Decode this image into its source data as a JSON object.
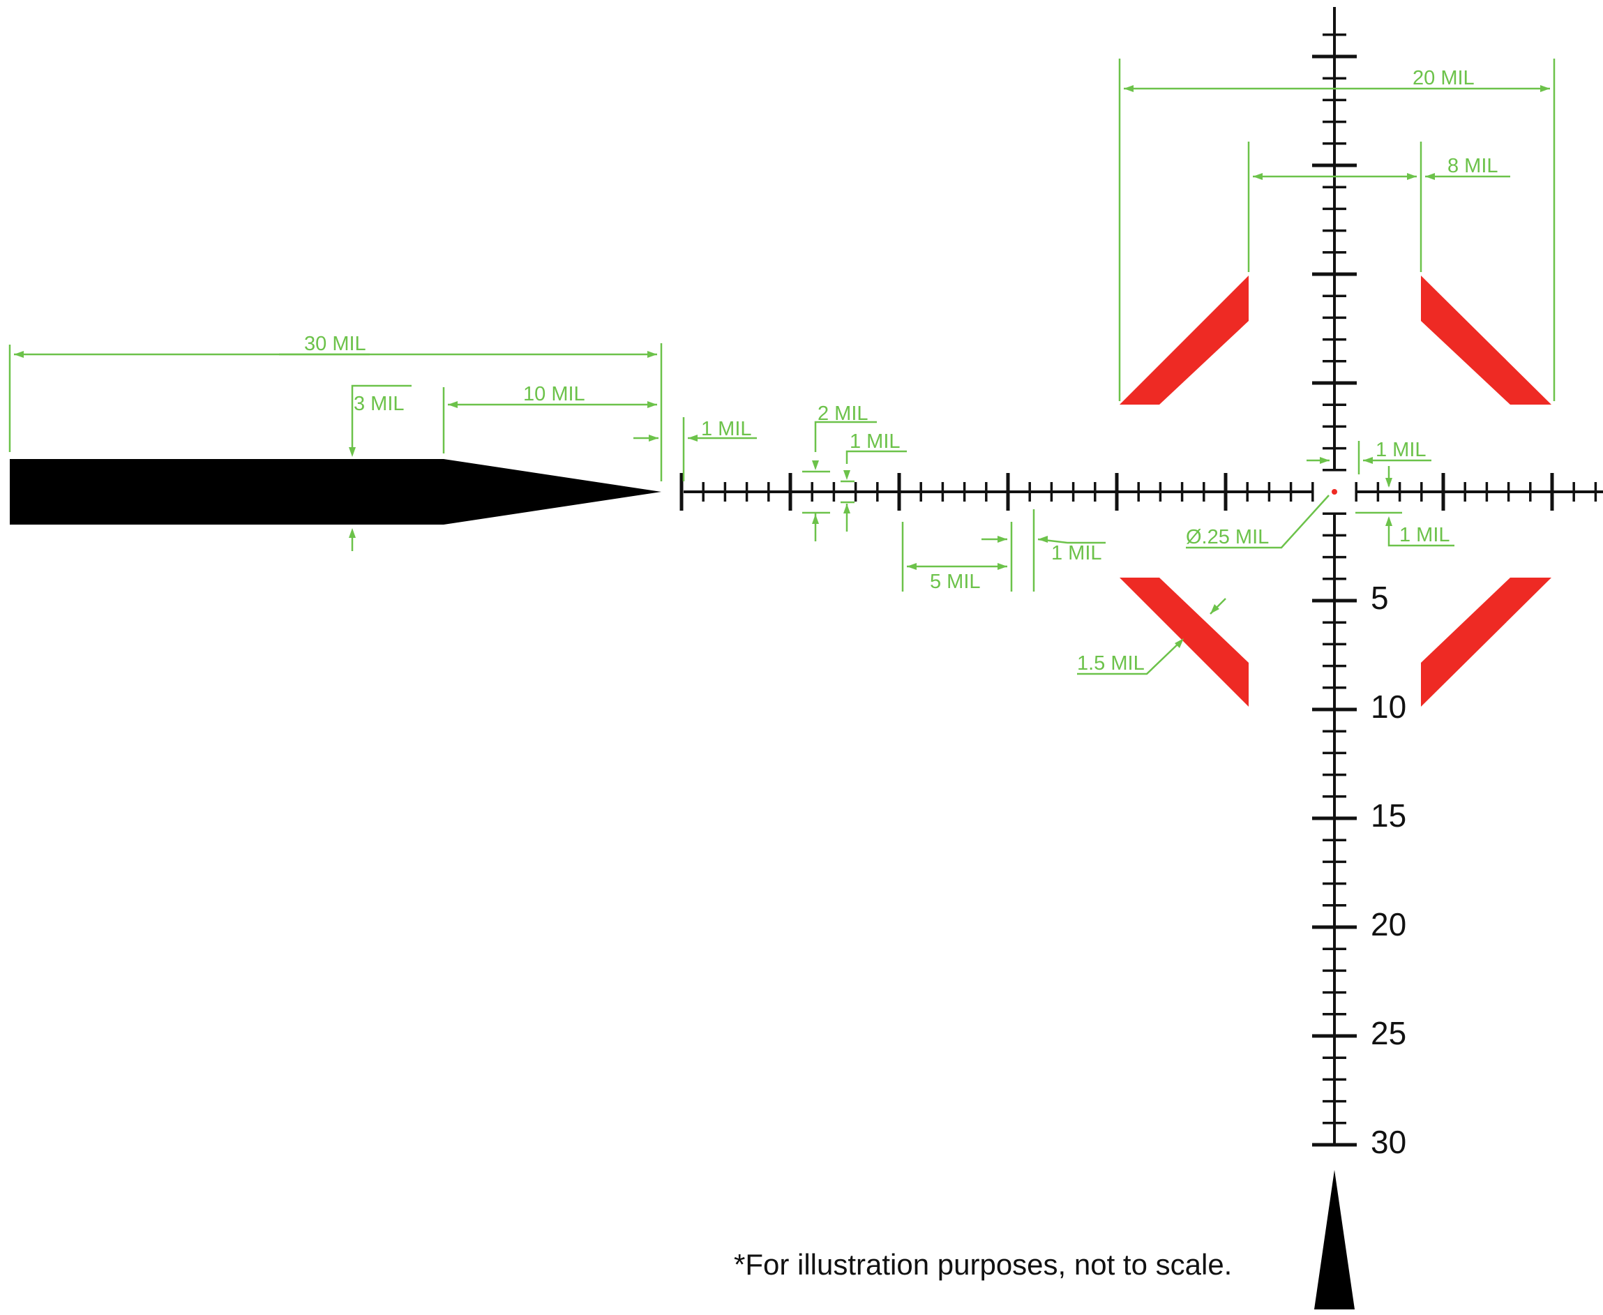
{
  "colors": {
    "reticle": "#111111",
    "dimension": "#6cc24a",
    "illuminated": "#ee2a24",
    "center_dot": "#ee2a24",
    "background": "#ffffff"
  },
  "reticle": {
    "center_dot": "Ø.25 MIL",
    "vertical_scale_labels": [
      "5",
      "10",
      "15",
      "20",
      "25",
      "30"
    ],
    "vertical_scale_values": [
      5,
      10,
      15,
      20,
      25,
      30
    ]
  },
  "dimensions": {
    "post_length": "30 MIL",
    "post_taper": "10 MIL",
    "post_thickness": "3 MIL",
    "post_gap": "1 MIL",
    "hash_spacing": "2 MIL",
    "hash_height": "1 MIL",
    "major_spacing": "5 MIL",
    "major_thickness": "1 MIL",
    "chevron_span": "20 MIL",
    "chevron_inner_gap": "8 MIL",
    "chevron_bar_width": "1.5 MIL",
    "center_gap_top": "1 MIL",
    "center_gap_right": "1 MIL",
    "center_dot_diameter": "Ø.25 MIL"
  },
  "footnote": "*For illustration purposes, not to scale."
}
